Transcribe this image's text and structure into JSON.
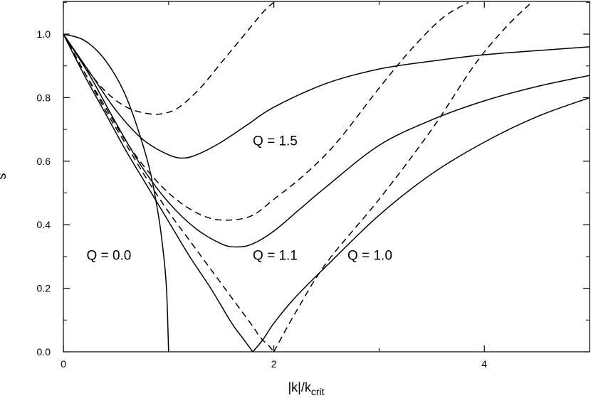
{
  "chart_data": {
    "type": "line",
    "title": "",
    "xlabel": {
      "main": "|k|/k",
      "sub": "crit"
    },
    "ylabel": "s",
    "xlim": [
      0,
      5
    ],
    "ylim": [
      0,
      1.1
    ],
    "x_ticks": [
      "0",
      "2",
      "4"
    ],
    "x_tick_values": [
      0,
      2,
      4
    ],
    "y_ticks": [
      "0.0",
      "0.2",
      "0.4",
      "0.6",
      "0.8",
      "1.0"
    ],
    "y_tick_values": [
      0,
      0.2,
      0.4,
      0.6,
      0.8,
      1.0
    ],
    "grid": false,
    "legend": "none",
    "annotations": [
      {
        "text": "Q = 1.5",
        "x": 1.8,
        "y": 0.65
      },
      {
        "text": "Q = 1.1",
        "x": 1.8,
        "y": 0.29
      },
      {
        "text": "Q = 1.0",
        "x": 2.7,
        "y": 0.29
      },
      {
        "text": "Q = 0.0",
        "x": 0.22,
        "y": 0.29
      }
    ],
    "series": [
      {
        "style": "solid",
        "x": [
          0,
          0.2,
          0.4,
          0.6,
          0.8,
          0.9,
          0.95,
          0.98,
          1.0
        ],
        "y": [
          1.0,
          0.98,
          0.917,
          0.8,
          0.6,
          0.436,
          0.312,
          0.199,
          0.0
        ]
      },
      {
        "style": "solid",
        "x": [
          0,
          0.2,
          0.4,
          0.6,
          0.8,
          1.0,
          1.2,
          1.4,
          1.6,
          1.7,
          1.8,
          1.9,
          2.0,
          2.2,
          2.5,
          3.0,
          3.5,
          4.0,
          4.5,
          5.0
        ],
        "y": [
          1.0,
          0.87,
          0.75,
          0.63,
          0.52,
          0.41,
          0.3,
          0.2,
          0.09,
          0.045,
          0.0,
          0.04,
          0.09,
          0.17,
          0.27,
          0.43,
          0.56,
          0.66,
          0.74,
          0.8
        ]
      },
      {
        "style": "solid",
        "x": [
          0,
          0.25,
          0.5,
          0.75,
          1.0,
          1.25,
          1.5,
          1.65,
          1.8,
          2.0,
          2.25,
          2.5,
          3.0,
          3.5,
          4.0,
          4.5,
          5.0
        ],
        "y": [
          1.0,
          0.87,
          0.72,
          0.58,
          0.47,
          0.39,
          0.34,
          0.33,
          0.34,
          0.38,
          0.45,
          0.52,
          0.65,
          0.73,
          0.79,
          0.835,
          0.87
        ]
      },
      {
        "style": "solid",
        "x": [
          0,
          0.25,
          0.5,
          0.75,
          1.0,
          1.15,
          1.3,
          1.5,
          1.75,
          2.0,
          2.5,
          3.0,
          3.5,
          4.0,
          4.5,
          5.0
        ],
        "y": [
          1.0,
          0.88,
          0.76,
          0.67,
          0.62,
          0.61,
          0.625,
          0.66,
          0.715,
          0.77,
          0.845,
          0.89,
          0.915,
          0.935,
          0.948,
          0.96
        ]
      },
      {
        "style": "dashed",
        "x": [
          0,
          0.2,
          0.4,
          0.6,
          0.8,
          1.0,
          1.2,
          1.4,
          1.6,
          1.8,
          1.85,
          1.9,
          1.95,
          2.0
        ],
        "y": [
          1.0,
          0.88,
          0.76,
          0.65,
          0.54,
          0.44,
          0.35,
          0.26,
          0.17,
          0.08,
          0.055,
          0.035,
          0.02,
          0.0
        ]
      },
      {
        "style": "dashed",
        "x": [
          2.0,
          2.2,
          2.5,
          3.0,
          3.5,
          3.9,
          4.2,
          4.45
        ],
        "y": [
          0.0,
          0.12,
          0.28,
          0.48,
          0.7,
          0.9,
          1.02,
          1.1
        ]
      },
      {
        "style": "dashed",
        "x": [
          0,
          0.2,
          0.4,
          0.6,
          0.8,
          1.0,
          1.2,
          1.4,
          1.6,
          1.8,
          2.0,
          2.3,
          2.6,
          3.0,
          3.3,
          3.6,
          3.85
        ],
        "y": [
          1.0,
          0.88,
          0.77,
          0.66,
          0.57,
          0.5,
          0.45,
          0.42,
          0.415,
          0.43,
          0.48,
          0.56,
          0.66,
          0.83,
          0.95,
          1.05,
          1.1
        ]
      },
      {
        "style": "dashed",
        "x": [
          0,
          0.2,
          0.4,
          0.6,
          0.8,
          0.95,
          1.1,
          1.3,
          1.5,
          1.7,
          1.9,
          2.0
        ],
        "y": [
          1.0,
          0.9,
          0.82,
          0.77,
          0.75,
          0.75,
          0.77,
          0.83,
          0.91,
          0.99,
          1.07,
          1.1
        ]
      }
    ]
  }
}
